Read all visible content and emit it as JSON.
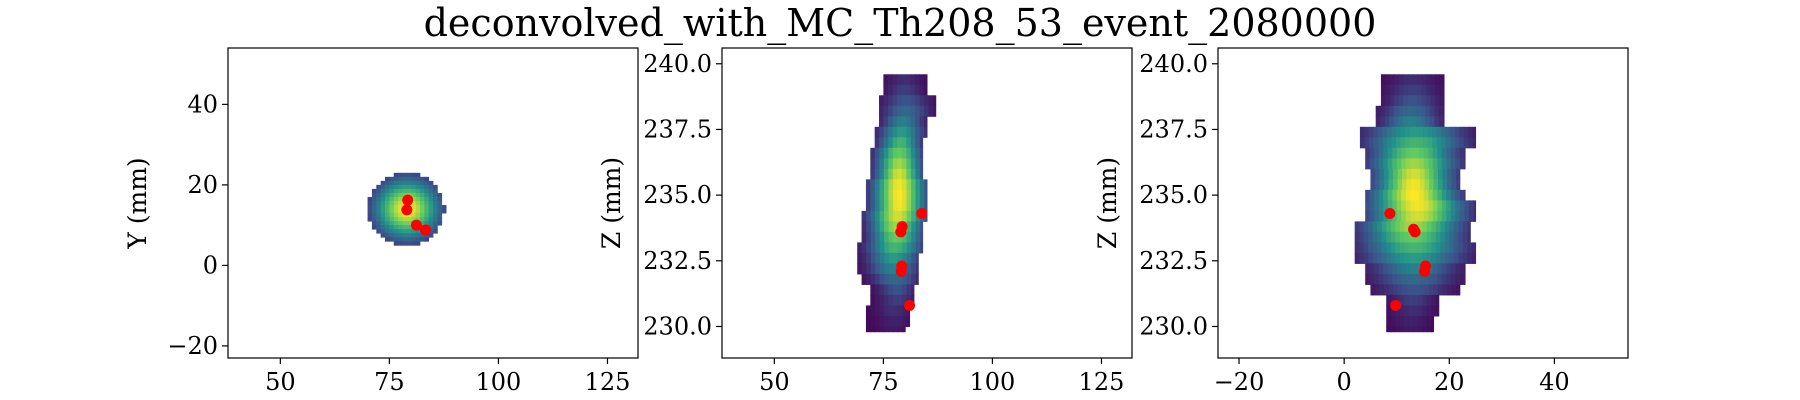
{
  "title": "deconvolved_with_MC_Th208_53_event_2080000",
  "chart_data": [
    {
      "type": "heatmap",
      "panel": "xy",
      "xlabel": "",
      "ylabel": "Y (mm)",
      "xlim": [
        38,
        132
      ],
      "ylim": [
        -23,
        54
      ],
      "xticks": [
        50,
        75,
        100,
        125
      ],
      "yticks": [
        -20,
        0,
        20,
        40
      ],
      "ytick_labels": [
        "−20",
        "0",
        "20",
        "40"
      ],
      "grid": false,
      "blob": {
        "shape": "disk",
        "cx": 79,
        "cy": 14,
        "r": 9,
        "rows": [
          {
            "y": 22,
            "x0": 76,
            "x1": 82
          },
          {
            "y": 21,
            "x0": 74,
            "x1": 84
          },
          {
            "y": 20,
            "x0": 73,
            "x1": 85
          },
          {
            "y": 19,
            "x0": 72,
            "x1": 86
          },
          {
            "y": 18,
            "x0": 71,
            "x1": 86
          },
          {
            "y": 17,
            "x0": 71,
            "x1": 87
          },
          {
            "y": 16,
            "x0": 70,
            "x1": 87
          },
          {
            "y": 15,
            "x0": 70,
            "x1": 87
          },
          {
            "y": 14,
            "x0": 70,
            "x1": 88
          },
          {
            "y": 13,
            "x0": 70,
            "x1": 88
          },
          {
            "y": 12,
            "x0": 70,
            "x1": 87
          },
          {
            "y": 11,
            "x0": 70,
            "x1": 87
          },
          {
            "y": 10,
            "x0": 71,
            "x1": 87
          },
          {
            "y": 9,
            "x0": 71,
            "x1": 86
          },
          {
            "y": 8,
            "x0": 72,
            "x1": 86
          },
          {
            "y": 7,
            "x0": 73,
            "x1": 85
          },
          {
            "y": 6,
            "x0": 74,
            "x1": 84
          },
          {
            "y": 5,
            "x0": 76,
            "x1": 82
          }
        ],
        "peak": [
          79,
          14
        ]
      },
      "points": [
        {
          "x": 79.2,
          "y": 16.2
        },
        {
          "x": 79.0,
          "y": 13.8
        },
        {
          "x": 81.2,
          "y": 10.0
        },
        {
          "x": 83.3,
          "y": 8.8
        }
      ]
    },
    {
      "type": "heatmap",
      "panel": "xz",
      "xlabel": "",
      "ylabel": "Z (mm)",
      "xlim": [
        38,
        132
      ],
      "ylim": [
        228.8,
        240.6
      ],
      "xticks": [
        50,
        75,
        100,
        125
      ],
      "yticks": [
        230.0,
        232.5,
        235.0,
        237.5,
        240.0
      ],
      "ytick_labels": [
        "230.0",
        "232.5",
        "235.0",
        "237.5",
        "240.0"
      ],
      "grid": false,
      "blob": {
        "shape": "rows",
        "rows": [
          {
            "z0": 239.2,
            "z1": 239.6,
            "x0": 75,
            "x1": 85
          },
          {
            "z0": 238.8,
            "x0": 75,
            "x1": 85,
            "z1": 239.2
          },
          {
            "z0": 238.4,
            "z1": 238.8,
            "x0": 74,
            "x1": 87
          },
          {
            "z0": 238.0,
            "z1": 238.4,
            "x0": 74,
            "x1": 87
          },
          {
            "z0": 237.6,
            "z1": 238.0,
            "x0": 74,
            "x1": 85
          },
          {
            "z0": 237.2,
            "z1": 237.6,
            "x0": 73,
            "x1": 85
          },
          {
            "z0": 236.8,
            "z1": 237.2,
            "x0": 73,
            "x1": 84
          },
          {
            "z0": 236.4,
            "z1": 236.8,
            "x0": 72,
            "x1": 84
          },
          {
            "z0": 236.0,
            "z1": 236.4,
            "x0": 72,
            "x1": 84
          },
          {
            "z0": 235.6,
            "z1": 236.0,
            "x0": 72,
            "x1": 84
          },
          {
            "z0": 235.2,
            "z1": 235.6,
            "x0": 71,
            "x1": 85
          },
          {
            "z0": 234.8,
            "z1": 235.2,
            "x0": 71,
            "x1": 85
          },
          {
            "z0": 234.4,
            "z1": 234.8,
            "x0": 71,
            "x1": 85
          },
          {
            "z0": 234.0,
            "z1": 234.4,
            "x0": 70,
            "x1": 85
          },
          {
            "z0": 233.6,
            "z1": 234.0,
            "x0": 70,
            "x1": 84
          },
          {
            "z0": 233.2,
            "z1": 233.6,
            "x0": 70,
            "x1": 84
          },
          {
            "z0": 232.8,
            "z1": 233.2,
            "x0": 69,
            "x1": 84
          },
          {
            "z0": 232.4,
            "z1": 232.8,
            "x0": 69,
            "x1": 83
          },
          {
            "z0": 232.0,
            "z1": 232.4,
            "x0": 69,
            "x1": 83
          },
          {
            "z0": 231.6,
            "z1": 232.0,
            "x0": 70,
            "x1": 83
          },
          {
            "z0": 231.2,
            "z1": 231.6,
            "x0": 72,
            "x1": 82
          },
          {
            "z0": 230.8,
            "z1": 231.2,
            "x0": 72,
            "x1": 82
          },
          {
            "z0": 230.4,
            "z1": 230.8,
            "x0": 71,
            "x1": 81
          },
          {
            "z0": 230.0,
            "z1": 230.4,
            "x0": 71,
            "x1": 81
          },
          {
            "z0": 229.8,
            "z1": 230.0,
            "x0": 71,
            "x1": 80
          }
        ],
        "peak": [
          79.5,
          235.0
        ]
      },
      "points": [
        {
          "x": 79.3,
          "y": 233.8
        },
        {
          "x": 79.0,
          "y": 233.6
        },
        {
          "x": 83.8,
          "y": 234.3
        },
        {
          "x": 79.2,
          "y": 232.3
        },
        {
          "x": 79.1,
          "y": 232.1
        },
        {
          "x": 81.0,
          "y": 230.8
        }
      ]
    },
    {
      "type": "heatmap",
      "panel": "yz",
      "xlabel": "",
      "ylabel": "Z (mm)",
      "xlim": [
        -24,
        54
      ],
      "ylim": [
        228.8,
        240.6
      ],
      "xticks": [
        -20,
        0,
        20,
        40
      ],
      "xtick_labels": [
        "−20",
        "0",
        "20",
        "40"
      ],
      "yticks": [
        230.0,
        232.5,
        235.0,
        237.5,
        240.0
      ],
      "ytick_labels": [
        "230.0",
        "232.5",
        "235.0",
        "237.5",
        "240.0"
      ],
      "grid": false,
      "blob": {
        "shape": "rows",
        "rows": [
          {
            "z0": 239.2,
            "z1": 239.6,
            "x0": 7,
            "x1": 19
          },
          {
            "z0": 238.8,
            "z1": 239.2,
            "x0": 7,
            "x1": 19
          },
          {
            "z0": 238.4,
            "z1": 238.8,
            "x0": 7,
            "x1": 19
          },
          {
            "z0": 238.0,
            "z1": 238.4,
            "x0": 6,
            "x1": 19
          },
          {
            "z0": 237.6,
            "z1": 238.0,
            "x0": 6,
            "x1": 19
          },
          {
            "z0": 237.2,
            "z1": 237.6,
            "x0": 3,
            "x1": 25
          },
          {
            "z0": 236.8,
            "z1": 237.2,
            "x0": 3,
            "x1": 25
          },
          {
            "z0": 236.4,
            "z1": 236.8,
            "x0": 4,
            "x1": 23
          },
          {
            "z0": 236.0,
            "z1": 236.4,
            "x0": 4,
            "x1": 23
          },
          {
            "z0": 235.6,
            "z1": 236.0,
            "x0": 5,
            "x1": 22
          },
          {
            "z0": 235.2,
            "z1": 235.6,
            "x0": 5,
            "x1": 22
          },
          {
            "z0": 234.8,
            "z1": 235.2,
            "x0": 4,
            "x1": 23
          },
          {
            "z0": 234.4,
            "z1": 234.8,
            "x0": 4,
            "x1": 25
          },
          {
            "z0": 234.0,
            "z1": 234.4,
            "x0": 4,
            "x1": 25
          },
          {
            "z0": 233.6,
            "z1": 234.0,
            "x0": 2,
            "x1": 24
          },
          {
            "z0": 233.2,
            "z1": 233.6,
            "x0": 2,
            "x1": 24
          },
          {
            "z0": 232.8,
            "z1": 233.2,
            "x0": 2,
            "x1": 25
          },
          {
            "z0": 232.4,
            "z1": 232.8,
            "x0": 2,
            "x1": 25
          },
          {
            "z0": 232.0,
            "z1": 232.4,
            "x0": 4,
            "x1": 23
          },
          {
            "z0": 231.6,
            "z1": 232.0,
            "x0": 4,
            "x1": 23
          },
          {
            "z0": 231.2,
            "z1": 231.6,
            "x0": 5,
            "x1": 22
          },
          {
            "z0": 230.8,
            "z1": 231.2,
            "x0": 8,
            "x1": 18
          },
          {
            "z0": 230.4,
            "z1": 230.8,
            "x0": 8,
            "x1": 18
          },
          {
            "z0": 230.0,
            "z1": 230.4,
            "x0": 8,
            "x1": 17
          },
          {
            "z0": 229.8,
            "z1": 230.0,
            "x0": 8,
            "x1": 17
          }
        ],
        "peak": [
          13,
          235.0
        ]
      },
      "points": [
        {
          "x": 8.7,
          "y": 234.3
        },
        {
          "x": 13.2,
          "y": 233.7
        },
        {
          "x": 13.5,
          "y": 233.6
        },
        {
          "x": 15.5,
          "y": 232.3
        },
        {
          "x": 15.3,
          "y": 232.1
        },
        {
          "x": 9.8,
          "y": 230.8
        }
      ]
    }
  ],
  "colors": {
    "viridis": [
      "#440154",
      "#3b528b",
      "#21918c",
      "#5ec962",
      "#fde725"
    ],
    "point": "#ff0000",
    "axes": "#000000"
  }
}
